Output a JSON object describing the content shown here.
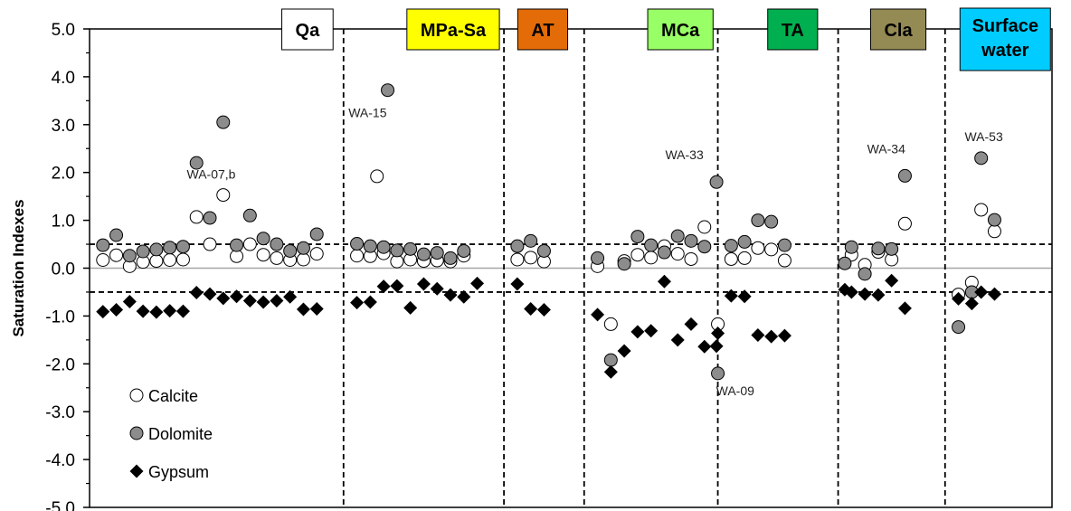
{
  "chart_data": {
    "type": "scatter",
    "ylabel": "Saturation Indexes",
    "ylim": [
      -5.0,
      5.0
    ],
    "ytick_labels": [
      "5.0",
      "4.0",
      "3.0",
      "2.0",
      "1.0",
      "0.0",
      "-1.0",
      "-2.0",
      "-3.0",
      "-4.0",
      "-5.0"
    ],
    "yticks": [
      5,
      4,
      3,
      2,
      1,
      0,
      -1,
      -2,
      -3,
      -4,
      -5
    ],
    "xlim": [
      0,
      72
    ],
    "dividers": [
      19,
      31,
      37,
      47,
      56,
      64
    ],
    "reference_lines": [
      0.5,
      -0.5
    ],
    "zero_line": 0,
    "groups": [
      {
        "name": "Qa",
        "color": "#ffffff",
        "x_center": 16.3
      },
      {
        "name": "MPa-Sa",
        "color": "#ffff00",
        "x_center": 27.2
      },
      {
        "name": "AT",
        "color": "#e36c09",
        "x_center": 33.9
      },
      {
        "name": "MCa",
        "color": "#99ff66",
        "x_center": 44.2
      },
      {
        "name": "TA",
        "color": "#00b050",
        "x_center": 52.6
      },
      {
        "name": "Cla",
        "color": "#948a54",
        "x_center": 60.5
      },
      {
        "name": "Surface water",
        "lines": [
          "Surface",
          "water"
        ],
        "color": "#00ccff",
        "x_center": 68.5
      }
    ],
    "series": [
      {
        "name": "Calcite",
        "marker": "circle-open",
        "points": [
          [
            1,
            0.17
          ],
          [
            2,
            0.27
          ],
          [
            3,
            0.04
          ],
          [
            4,
            0.13
          ],
          [
            5,
            0.15
          ],
          [
            6,
            0.17
          ],
          [
            7,
            0.18
          ],
          [
            8,
            1.07
          ],
          [
            9,
            0.5
          ],
          [
            10,
            1.53
          ],
          [
            11,
            0.25
          ],
          [
            12,
            0.5
          ],
          [
            13,
            0.28
          ],
          [
            14,
            0.21
          ],
          [
            15,
            0.17
          ],
          [
            16,
            0.18
          ],
          [
            17,
            0.3
          ],
          [
            20,
            0.26
          ],
          [
            21,
            0.25
          ],
          [
            22,
            0.31
          ],
          [
            23,
            0.14
          ],
          [
            24,
            0.18
          ],
          [
            25,
            0.15
          ],
          [
            26,
            0.16
          ],
          [
            27,
            0.14
          ],
          [
            28,
            0.26
          ],
          [
            21.5,
            1.92
          ],
          [
            32,
            0.18
          ],
          [
            33,
            0.22
          ],
          [
            34,
            0.14
          ],
          [
            38,
            0.04
          ],
          [
            39,
            -1.17
          ],
          [
            40,
            0.15
          ],
          [
            41,
            0.28
          ],
          [
            42,
            0.22
          ],
          [
            43,
            0.46
          ],
          [
            44,
            0.3
          ],
          [
            45,
            0.19
          ],
          [
            46,
            0.86
          ],
          [
            47,
            -1.17
          ],
          [
            48,
            0.19
          ],
          [
            49,
            0.21
          ],
          [
            50,
            0.42
          ],
          [
            51,
            0.39
          ],
          [
            52,
            0.16
          ],
          [
            57,
            0.28
          ],
          [
            58,
            0.07
          ],
          [
            59,
            0.34
          ],
          [
            60,
            0.18
          ],
          [
            61,
            0.93
          ],
          [
            65,
            -0.55
          ],
          [
            66,
            -0.3
          ],
          [
            66.7,
            1.22
          ],
          [
            67.7,
            0.77
          ]
        ]
      },
      {
        "name": "Dolomite",
        "marker": "circle-filled",
        "points": [
          [
            1,
            0.48
          ],
          [
            2,
            0.69
          ],
          [
            3,
            0.26
          ],
          [
            4,
            0.35
          ],
          [
            5,
            0.39
          ],
          [
            6,
            0.43
          ],
          [
            7,
            0.45
          ],
          [
            8,
            2.2
          ],
          [
            9,
            1.05
          ],
          [
            10,
            3.05
          ],
          [
            11,
            0.48
          ],
          [
            12,
            1.1
          ],
          [
            13,
            0.62
          ],
          [
            14,
            0.5
          ],
          [
            15,
            0.36
          ],
          [
            16,
            0.42
          ],
          [
            17,
            0.71
          ],
          [
            20,
            0.51
          ],
          [
            21,
            0.46
          ],
          [
            22,
            0.44
          ],
          [
            23,
            0.37
          ],
          [
            24,
            0.4
          ],
          [
            25,
            0.29
          ],
          [
            26,
            0.32
          ],
          [
            27,
            0.21
          ],
          [
            28,
            0.36
          ],
          [
            22.3,
            3.72
          ],
          [
            32,
            0.46
          ],
          [
            33,
            0.57
          ],
          [
            34,
            0.36
          ],
          [
            38,
            0.21
          ],
          [
            39,
            -1.92
          ],
          [
            40,
            0.09
          ],
          [
            41,
            0.66
          ],
          [
            42,
            0.48
          ],
          [
            43,
            0.33
          ],
          [
            44,
            0.67
          ],
          [
            45,
            0.57
          ],
          [
            46,
            0.45
          ],
          [
            46.9,
            1.8
          ],
          [
            47,
            -2.2
          ],
          [
            48,
            0.47
          ],
          [
            49,
            0.55
          ],
          [
            50,
            1.0
          ],
          [
            51,
            0.97
          ],
          [
            52,
            0.48
          ],
          [
            56.5,
            0.1
          ],
          [
            57,
            0.44
          ],
          [
            58,
            -0.12
          ],
          [
            59,
            0.41
          ],
          [
            60,
            0.4
          ],
          [
            61,
            1.93
          ],
          [
            65,
            -1.23
          ],
          [
            66,
            -0.5
          ],
          [
            66.7,
            2.3
          ],
          [
            67.7,
            1.01
          ]
        ]
      },
      {
        "name": "Gypsum",
        "marker": "diamond",
        "points": [
          [
            1,
            -0.91
          ],
          [
            2,
            -0.87
          ],
          [
            3,
            -0.7
          ],
          [
            4,
            -0.9
          ],
          [
            5,
            -0.92
          ],
          [
            6,
            -0.89
          ],
          [
            7,
            -0.9
          ],
          [
            8,
            -0.51
          ],
          [
            9,
            -0.54
          ],
          [
            10,
            -0.63
          ],
          [
            11,
            -0.59
          ],
          [
            12,
            -0.68
          ],
          [
            13,
            -0.71
          ],
          [
            14,
            -0.68
          ],
          [
            15,
            -0.6
          ],
          [
            16,
            -0.86
          ],
          [
            17,
            -0.85
          ],
          [
            20,
            -0.72
          ],
          [
            21,
            -0.71
          ],
          [
            22,
            -0.38
          ],
          [
            23,
            -0.37
          ],
          [
            24,
            -0.83
          ],
          [
            25,
            -0.33
          ],
          [
            26,
            -0.43
          ],
          [
            27,
            -0.56
          ],
          [
            28,
            -0.6
          ],
          [
            29,
            -0.32
          ],
          [
            32,
            -0.33
          ],
          [
            33,
            -0.85
          ],
          [
            34,
            -0.87
          ],
          [
            38,
            -0.97
          ],
          [
            39,
            -2.17
          ],
          [
            40,
            -1.73
          ],
          [
            41,
            -1.33
          ],
          [
            42,
            -1.31
          ],
          [
            43,
            -0.28
          ],
          [
            44,
            -1.5
          ],
          [
            45,
            -1.17
          ],
          [
            46,
            -1.64
          ],
          [
            46.9,
            -1.63
          ],
          [
            47,
            -1.36
          ],
          [
            48,
            -0.58
          ],
          [
            49,
            -0.59
          ],
          [
            50,
            -1.4
          ],
          [
            51,
            -1.43
          ],
          [
            52,
            -1.41
          ],
          [
            56.5,
            -0.45
          ],
          [
            57,
            -0.5
          ],
          [
            58,
            -0.54
          ],
          [
            59,
            -0.56
          ],
          [
            60,
            -0.26
          ],
          [
            61,
            -0.84
          ],
          [
            65,
            -0.64
          ],
          [
            66,
            -0.74
          ],
          [
            66.7,
            -0.5
          ],
          [
            67.7,
            -0.54
          ]
        ]
      }
    ],
    "annotations": [
      {
        "text": "WA-07,b",
        "x": 9.1,
        "y": 1.87
      },
      {
        "text": "WA-15",
        "x": 20.8,
        "y": 3.16
      },
      {
        "text": "WA-33",
        "x": 44.5,
        "y": 2.28
      },
      {
        "text": "WA-09",
        "x": 48.3,
        "y": -2.66
      },
      {
        "text": "WA-34",
        "x": 59.6,
        "y": 2.4
      },
      {
        "text": "WA-53",
        "x": 66.9,
        "y": 2.66
      }
    ],
    "legend": {
      "placement": "bottom-left",
      "entries": [
        {
          "name": "Calcite",
          "marker": "circle-open"
        },
        {
          "name": "Dolomite",
          "marker": "circle-filled"
        },
        {
          "name": "Gypsum",
          "marker": "diamond"
        }
      ]
    },
    "colors": {
      "calcite_fill": "#ffffff",
      "dolomite_fill": "#8c8c8c",
      "gypsum_fill": "#000000",
      "reference_line": "#000000",
      "zero_line": "#a6a6a6"
    }
  }
}
